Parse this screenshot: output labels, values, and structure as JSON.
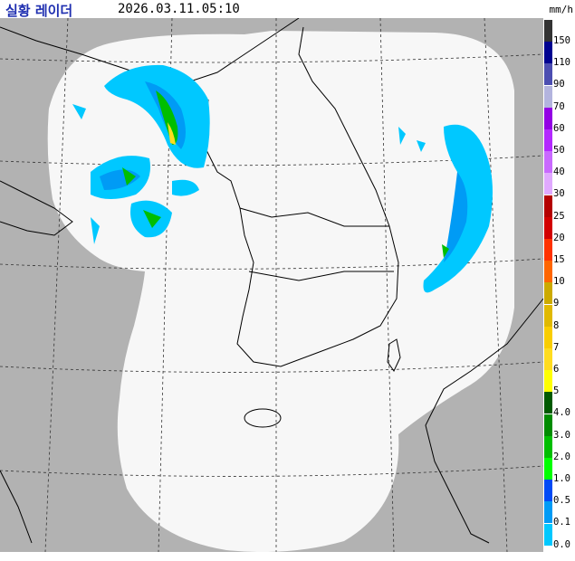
{
  "header": {
    "title": "실황 레이더",
    "timestamp": "2026.03.11.05:10",
    "unit": "mm/h"
  },
  "legend": {
    "items": [
      {
        "label": "150",
        "color": "#333333"
      },
      {
        "label": "110",
        "color": "#000390"
      },
      {
        "label": "90",
        "color": "#4c4eb1"
      },
      {
        "label": "70",
        "color": "#b3b4de"
      },
      {
        "label": "60",
        "color": "#9300e4"
      },
      {
        "label": "50",
        "color": "#b329ff"
      },
      {
        "label": "40",
        "color": "#c969ff"
      },
      {
        "label": "30",
        "color": "#e0a9ff"
      },
      {
        "label": "25",
        "color": "#b40000"
      },
      {
        "label": "20",
        "color": "#d20000"
      },
      {
        "label": "15",
        "color": "#ff3200"
      },
      {
        "label": "10",
        "color": "#ff6600"
      },
      {
        "label": "9",
        "color": "#ccaa00"
      },
      {
        "label": "8",
        "color": "#e0b900"
      },
      {
        "label": "7",
        "color": "#f9cd00"
      },
      {
        "label": "6",
        "color": "#ffdc1f"
      },
      {
        "label": "5",
        "color": "#ffff00"
      },
      {
        "label": "4.0",
        "color": "#005a00"
      },
      {
        "label": "3.0",
        "color": "#008c00"
      },
      {
        "label": "2.0",
        "color": "#00be00"
      },
      {
        "label": "1.0",
        "color": "#00ff00"
      },
      {
        "label": "0.5",
        "color": "#004af5"
      },
      {
        "label": "0.1",
        "color": "#009bf5"
      },
      {
        "label": "0.0",
        "color": "#00c8ff"
      }
    ]
  }
}
